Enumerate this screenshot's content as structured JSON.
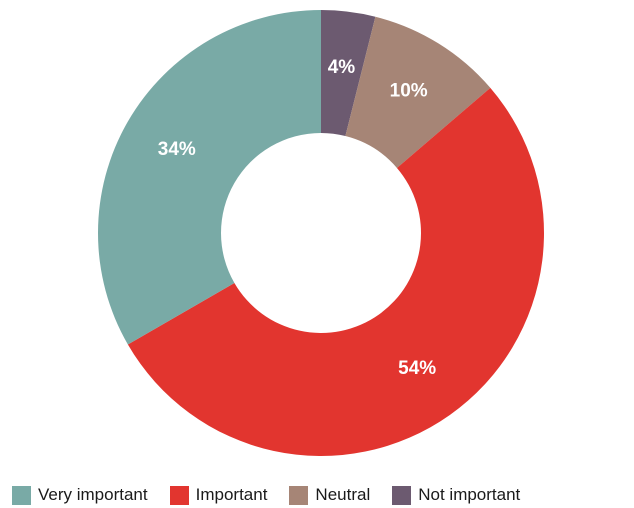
{
  "chart_data": {
    "type": "pie",
    "variant": "donut",
    "categories": [
      "Very important",
      "Important",
      "Neutral",
      "Not important"
    ],
    "values": [
      34,
      54,
      10,
      4
    ],
    "labels": [
      "34%",
      "54%",
      "10%",
      "4%"
    ],
    "colors": [
      "#79aaa6",
      "#e2352f",
      "#a68576",
      "#6c5a70"
    ],
    "legend_position": "bottom",
    "title": ""
  }
}
